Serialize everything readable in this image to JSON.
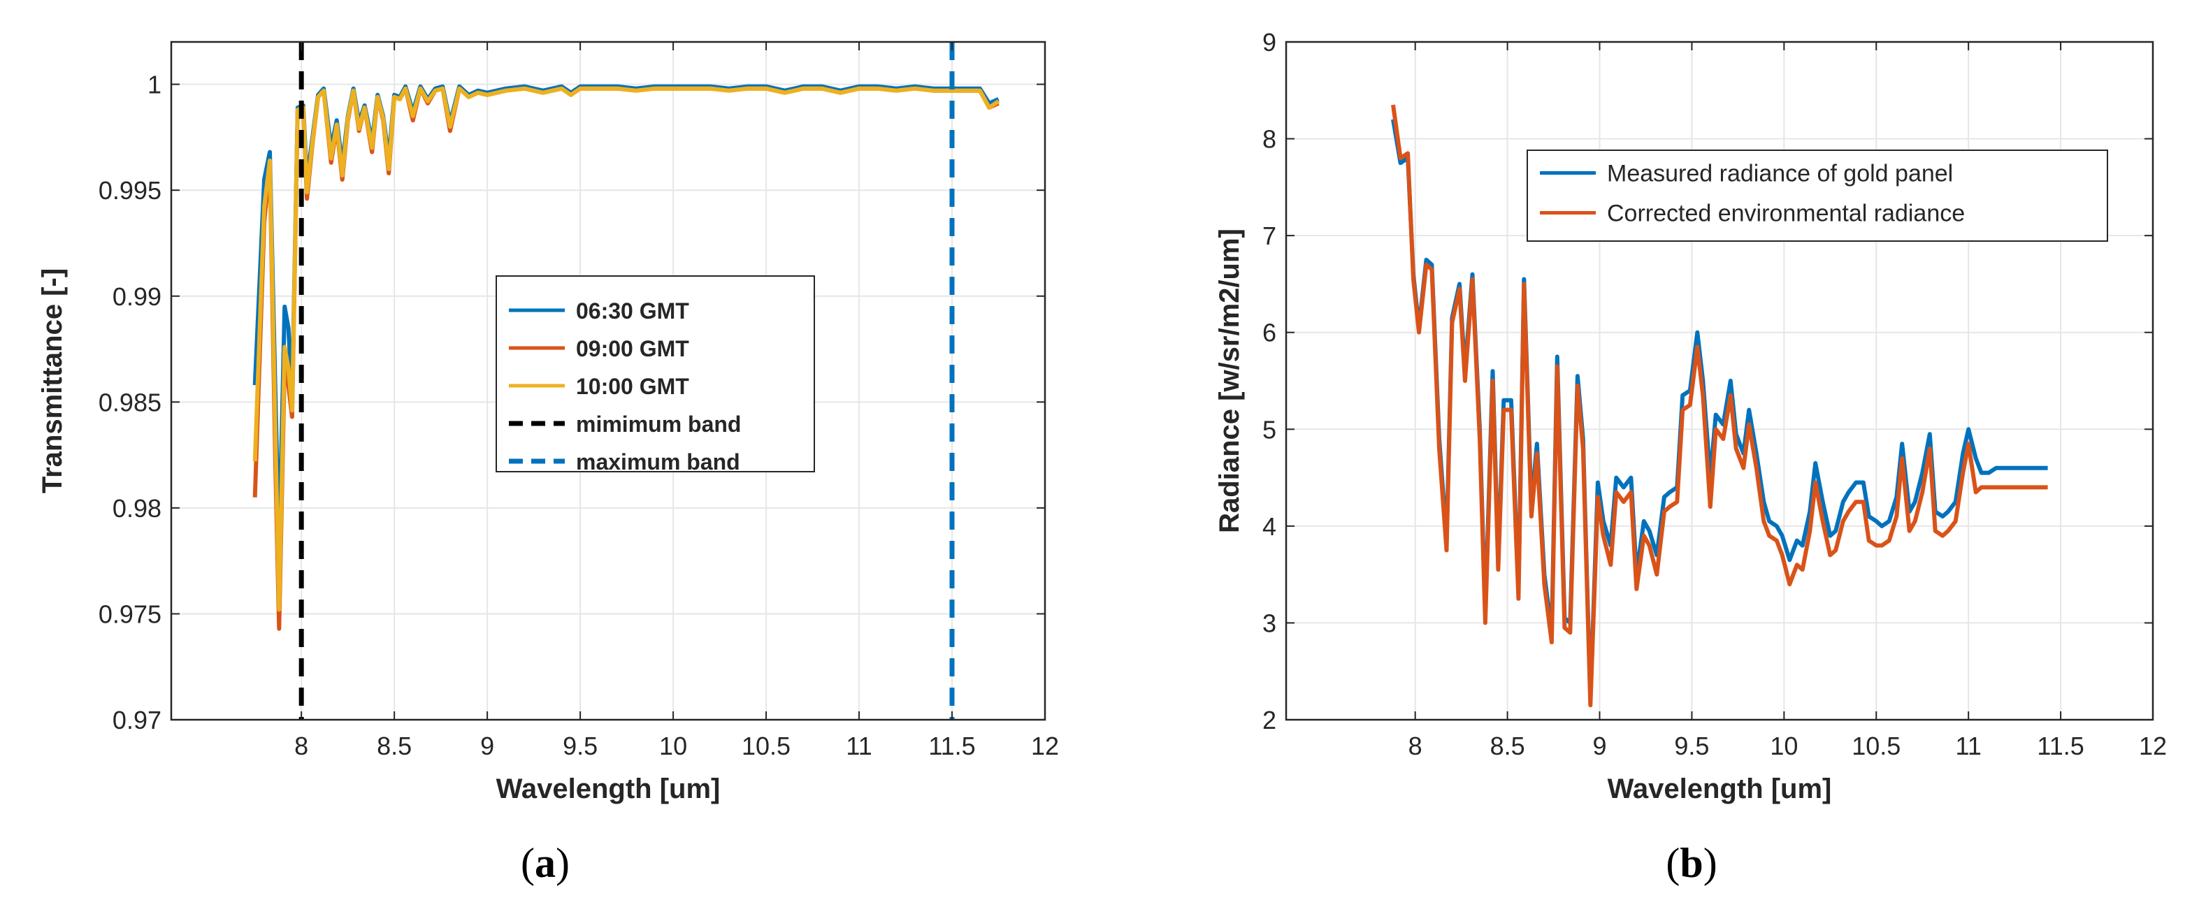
{
  "figure": {
    "panel_labels": [
      "a",
      "b"
    ]
  },
  "colors": {
    "series_blue": "#0072BD",
    "series_orange": "#D95319",
    "series_yellow": "#EDB120",
    "min_band": "#000000",
    "max_band": "#0072BD",
    "grid": "#e6e6e6",
    "axis": "#262626"
  },
  "chart_data": [
    {
      "panel": "a",
      "type": "line",
      "xlabel": "Wavelength [um]",
      "ylabel": "Transmittance [-]",
      "xlim": [
        7.3,
        12
      ],
      "ylim": [
        0.97,
        1.002
      ],
      "xticks": [
        8,
        8.5,
        9,
        9.5,
        10,
        10.5,
        11,
        11.5,
        12
      ],
      "xtick_labels": [
        "8",
        "8.5",
        "9",
        "9.5",
        "10",
        "10.5",
        "11",
        "11.5",
        "12"
      ],
      "yticks": [
        0.97,
        0.975,
        0.98,
        0.985,
        0.99,
        0.995,
        1
      ],
      "ytick_labels": [
        "0.97",
        "0.975",
        "0.98",
        "0.985",
        "0.99",
        "0.995",
        "1"
      ],
      "grid": true,
      "legend_position": "center",
      "x": [
        7.75,
        7.8,
        7.83,
        7.86,
        7.88,
        7.91,
        7.93,
        7.95,
        7.98,
        8.01,
        8.03,
        8.06,
        8.09,
        8.12,
        8.16,
        8.19,
        8.22,
        8.25,
        8.28,
        8.31,
        8.34,
        8.38,
        8.41,
        8.44,
        8.47,
        8.5,
        8.53,
        8.56,
        8.6,
        8.64,
        8.68,
        8.72,
        8.76,
        8.8,
        8.85,
        8.9,
        8.95,
        9.0,
        9.1,
        9.2,
        9.3,
        9.4,
        9.45,
        9.5,
        9.6,
        9.7,
        9.8,
        9.9,
        10.0,
        10.1,
        10.2,
        10.3,
        10.4,
        10.5,
        10.6,
        10.7,
        10.8,
        10.9,
        11.0,
        11.1,
        11.2,
        11.3,
        11.4,
        11.5,
        11.6,
        11.65,
        11.7,
        11.75
      ],
      "series": [
        {
          "name": "06:30 GMT",
          "values": [
            0.9858,
            0.9955,
            0.9968,
            0.9855,
            0.978,
            0.9895,
            0.9885,
            0.9852,
            0.9989,
            0.999,
            0.9955,
            0.9975,
            0.9995,
            0.9998,
            0.997,
            0.9983,
            0.9962,
            0.9985,
            0.9998,
            0.9982,
            0.999,
            0.9973,
            0.9995,
            0.9985,
            0.9965,
            0.9995,
            0.9994,
            0.9999,
            0.9987,
            0.9999,
            0.9993,
            0.9998,
            0.9999,
            0.9982,
            0.9999,
            0.9995,
            0.9997,
            0.9996,
            0.9998,
            0.9999,
            0.9997,
            0.9999,
            0.9996,
            0.9999,
            0.9999,
            0.9999,
            0.9998,
            0.9999,
            0.9999,
            0.9999,
            0.9999,
            0.9998,
            0.9999,
            0.9999,
            0.9997,
            0.9999,
            0.9999,
            0.9997,
            0.9999,
            0.9999,
            0.9998,
            0.9999,
            0.9998,
            0.9998,
            0.9998,
            0.9998,
            0.9991,
            0.9993
          ]
        },
        {
          "name": "09:00 GMT",
          "values": [
            0.9805,
            0.9935,
            0.9962,
            0.9822,
            0.9743,
            0.9868,
            0.9858,
            0.9843,
            0.9988,
            0.9989,
            0.9946,
            0.9972,
            0.9994,
            0.9997,
            0.9963,
            0.998,
            0.9955,
            0.9983,
            0.9997,
            0.9978,
            0.9989,
            0.9968,
            0.9994,
            0.9983,
            0.9958,
            0.9994,
            0.9993,
            0.9998,
            0.9983,
            0.9998,
            0.9991,
            0.9997,
            0.9998,
            0.9978,
            0.9998,
            0.9994,
            0.9996,
            0.9995,
            0.9997,
            0.9998,
            0.9996,
            0.9998,
            0.9995,
            0.9998,
            0.9998,
            0.9998,
            0.9997,
            0.9998,
            0.9998,
            0.9998,
            0.9998,
            0.9997,
            0.9998,
            0.9998,
            0.9996,
            0.9998,
            0.9998,
            0.9996,
            0.9998,
            0.9998,
            0.9997,
            0.9998,
            0.9997,
            0.9997,
            0.9997,
            0.9997,
            0.9989,
            0.9991
          ]
        },
        {
          "name": "10:00 GMT",
          "values": [
            0.9822,
            0.9942,
            0.9964,
            0.9836,
            0.9752,
            0.9876,
            0.9866,
            0.9846,
            0.9988,
            0.9989,
            0.9949,
            0.9973,
            0.9994,
            0.9997,
            0.9965,
            0.9981,
            0.9957,
            0.9984,
            0.9997,
            0.9979,
            0.9989,
            0.997,
            0.9994,
            0.9984,
            0.996,
            0.9994,
            0.9993,
            0.9998,
            0.9985,
            0.9998,
            0.9992,
            0.9997,
            0.9998,
            0.998,
            0.9998,
            0.9994,
            0.9996,
            0.9995,
            0.9997,
            0.9998,
            0.9996,
            0.9998,
            0.9995,
            0.9998,
            0.9998,
            0.9998,
            0.9997,
            0.9998,
            0.9998,
            0.9998,
            0.9998,
            0.9997,
            0.9998,
            0.9998,
            0.9996,
            0.9998,
            0.9998,
            0.9996,
            0.9998,
            0.9998,
            0.9997,
            0.9998,
            0.9997,
            0.9997,
            0.9997,
            0.9997,
            0.9989,
            0.9992
          ]
        }
      ],
      "vlines": [
        {
          "name": "mimimum band",
          "x": 8,
          "style": "dashed",
          "color": "#000000"
        },
        {
          "name": "maximum band",
          "x": 11.5,
          "style": "dashed",
          "color": "#0072BD"
        }
      ],
      "legend": [
        "06:30 GMT",
        "09:00 GMT",
        "10:00 GMT",
        "mimimum band",
        "maximum band"
      ]
    },
    {
      "panel": "b",
      "type": "line",
      "xlabel": "Wavelength [um]",
      "ylabel": "Radiance [w/sr/m2/um]",
      "xlim": [
        7.3,
        12
      ],
      "ylim": [
        2,
        9
      ],
      "xticks": [
        8,
        8.5,
        9,
        9.5,
        10,
        10.5,
        11,
        11.5,
        12
      ],
      "xtick_labels": [
        "8",
        "8.5",
        "9",
        "9.5",
        "10",
        "10.5",
        "11",
        "11.5",
        "12"
      ],
      "yticks": [
        2,
        3,
        4,
        5,
        6,
        7,
        8,
        9
      ],
      "ytick_labels": [
        "2",
        "3",
        "4",
        "5",
        "6",
        "7",
        "8",
        "9"
      ],
      "grid": true,
      "legend_position": "top-right",
      "x": [
        7.88,
        7.92,
        7.96,
        7.99,
        8.02,
        8.06,
        8.09,
        8.13,
        8.17,
        8.2,
        8.24,
        8.27,
        8.31,
        8.35,
        8.38,
        8.42,
        8.45,
        8.48,
        8.52,
        8.56,
        8.59,
        8.63,
        8.66,
        8.7,
        8.74,
        8.77,
        8.81,
        8.84,
        8.88,
        8.91,
        8.95,
        8.99,
        9.02,
        9.06,
        9.09,
        9.13,
        9.17,
        9.2,
        9.24,
        9.27,
        9.31,
        9.35,
        9.38,
        9.42,
        9.45,
        9.49,
        9.53,
        9.56,
        9.6,
        9.63,
        9.67,
        9.71,
        9.74,
        9.78,
        9.81,
        9.85,
        9.89,
        9.92,
        9.96,
        9.99,
        10.03,
        10.07,
        10.1,
        10.14,
        10.17,
        10.21,
        10.25,
        10.28,
        10.32,
        10.35,
        10.39,
        10.43,
        10.46,
        10.5,
        10.53,
        10.57,
        10.61,
        10.64,
        10.68,
        10.71,
        10.75,
        10.79,
        10.82,
        10.86,
        10.89,
        10.93,
        10.97,
        11.0,
        11.04,
        11.07,
        11.11,
        11.15,
        11.18,
        11.22,
        11.25,
        11.29,
        11.33,
        11.36,
        11.4,
        11.43
      ],
      "series": [
        {
          "name": "Measured radiance of gold panel",
          "values": [
            8.2,
            7.75,
            7.8,
            6.6,
            6.05,
            6.75,
            6.7,
            4.9,
            3.85,
            6.15,
            6.5,
            5.6,
            6.6,
            5.0,
            3.1,
            5.6,
            3.65,
            5.3,
            5.3,
            3.35,
            6.55,
            4.2,
            4.85,
            3.5,
            2.9,
            5.75,
            3.05,
            3.0,
            5.55,
            4.9,
            2.2,
            4.45,
            4.05,
            3.8,
            4.5,
            4.4,
            4.5,
            3.5,
            4.05,
            3.95,
            3.7,
            4.3,
            4.35,
            4.4,
            5.35,
            5.4,
            6.0,
            5.5,
            4.5,
            5.15,
            5.05,
            5.5,
            4.95,
            4.75,
            5.2,
            4.75,
            4.25,
            4.05,
            4.0,
            3.9,
            3.65,
            3.85,
            3.8,
            4.15,
            4.65,
            4.25,
            3.9,
            3.95,
            4.25,
            4.35,
            4.45,
            4.45,
            4.1,
            4.05,
            4.0,
            4.05,
            4.3,
            4.85,
            4.15,
            4.25,
            4.55,
            4.95,
            4.15,
            4.1,
            4.15,
            4.25,
            4.75,
            5.0,
            4.7,
            4.55,
            4.55,
            4.6,
            4.6,
            4.6,
            4.6,
            4.6,
            4.6,
            4.6,
            4.6,
            4.6
          ]
        },
        {
          "name": "Corrected environmental radiance",
          "values": [
            8.35,
            7.8,
            7.85,
            6.55,
            6.0,
            6.7,
            6.65,
            4.8,
            3.75,
            6.1,
            6.45,
            5.5,
            6.55,
            4.9,
            3.0,
            5.5,
            3.55,
            5.2,
            5.2,
            3.25,
            6.5,
            4.1,
            4.75,
            3.4,
            2.8,
            5.65,
            2.95,
            2.9,
            5.45,
            4.8,
            2.15,
            4.3,
            3.9,
            3.6,
            4.35,
            4.25,
            4.35,
            3.35,
            3.9,
            3.8,
            3.5,
            4.15,
            4.2,
            4.25,
            5.2,
            5.25,
            5.85,
            5.35,
            4.2,
            5.0,
            4.9,
            5.35,
            4.8,
            4.6,
            5.05,
            4.6,
            4.05,
            3.9,
            3.85,
            3.7,
            3.4,
            3.6,
            3.55,
            3.95,
            4.45,
            4.05,
            3.7,
            3.75,
            4.05,
            4.15,
            4.25,
            4.25,
            3.85,
            3.8,
            3.8,
            3.85,
            4.1,
            4.7,
            3.95,
            4.05,
            4.35,
            4.8,
            3.95,
            3.9,
            3.95,
            4.05,
            4.55,
            4.85,
            4.35,
            4.4,
            4.4,
            4.4,
            4.4,
            4.4,
            4.4,
            4.4,
            4.4,
            4.4,
            4.4,
            4.4
          ]
        }
      ],
      "legend": [
        "Measured radiance of gold panel",
        "Corrected environmental radiance"
      ]
    }
  ]
}
